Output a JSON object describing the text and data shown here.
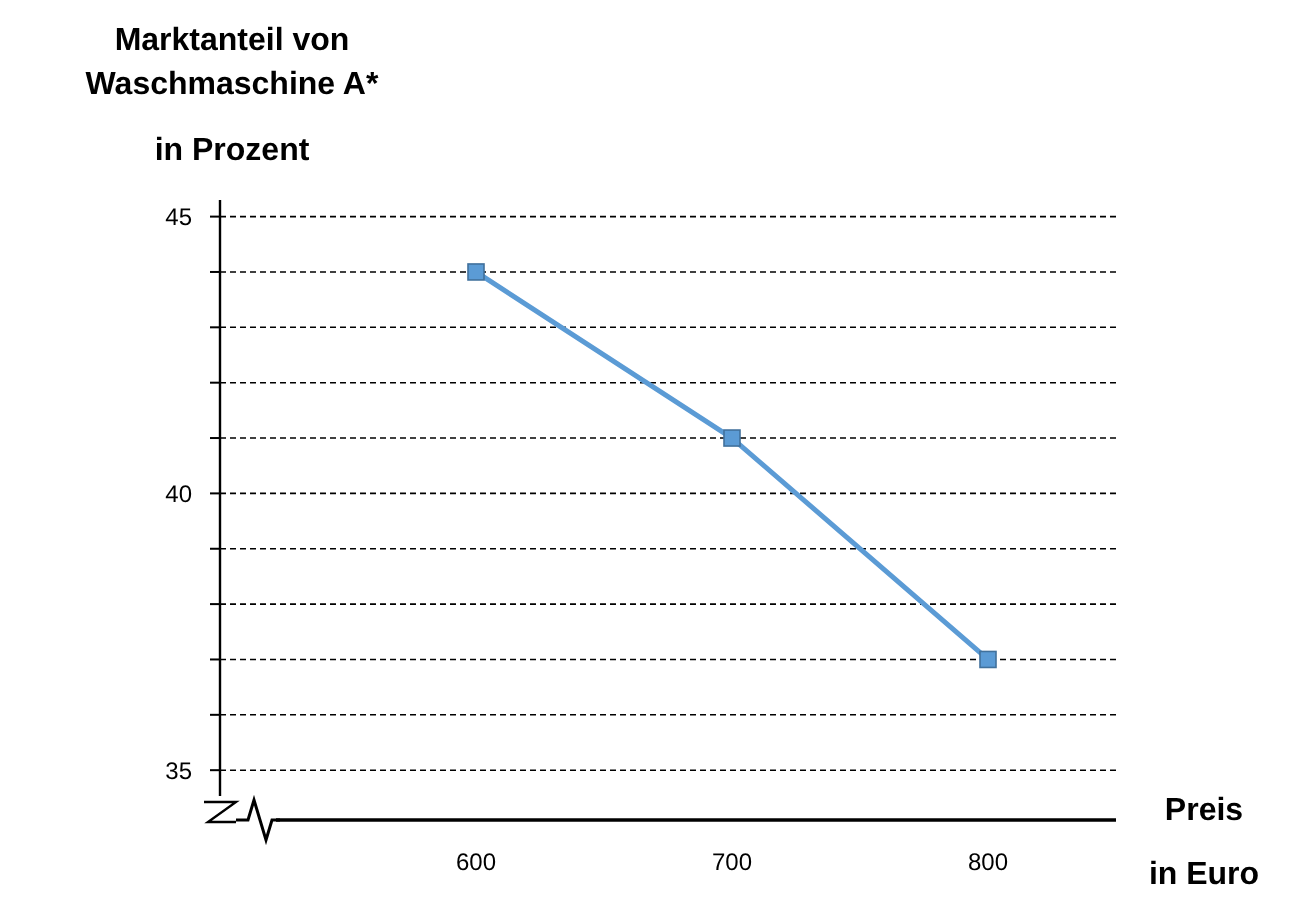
{
  "chart_data": {
    "type": "line",
    "ylabel": "Marktanteil von\nWaschmaschine A*\nin Prozent",
    "xlabel": "Preis\nin Euro",
    "x": [
      600,
      700,
      800
    ],
    "series": [
      {
        "color": "#5b9bd5",
        "values": [
          44,
          41,
          37
        ]
      }
    ],
    "xlim": [
      500,
      850
    ],
    "xticks": [
      600,
      700,
      800
    ],
    "ylim": [
      34.1,
      45.3
    ],
    "yticks": [
      35,
      {
        "value": 36,
        "label": null
      },
      {
        "value": 37,
        "label": null
      },
      {
        "value": 38,
        "label": null
      },
      {
        "value": 39,
        "label": null
      },
      40,
      {
        "value": 41,
        "label": null
      },
      {
        "value": 42,
        "label": null
      },
      {
        "value": 43,
        "label": null
      },
      {
        "value": 44,
        "label": null
      },
      45
    ],
    "grid": "y",
    "marker": "square",
    "line_style": "solid"
  }
}
